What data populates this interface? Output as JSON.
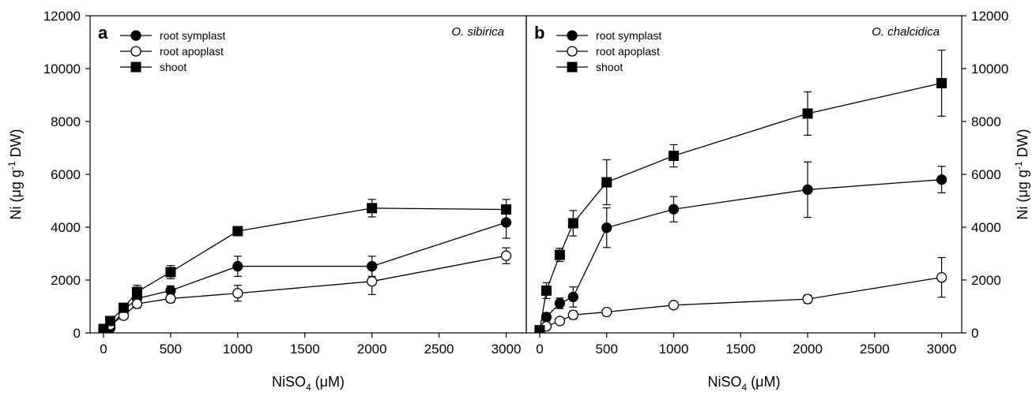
{
  "chart_data": [
    {
      "type": "line",
      "panel_label": "a",
      "species": "O. sibirica",
      "xlabel": "NiSO",
      "xlabel_sub": "4",
      "xlabel_unit": " (μM)",
      "ylabel_pre": "Ni (μg g",
      "ylabel_sup": "-1",
      "ylabel_post": " DW)",
      "xlim": [
        -100,
        3150
      ],
      "ylim": [
        0,
        12000
      ],
      "x_ticks": [
        0,
        500,
        1000,
        1500,
        2000,
        2500,
        3000
      ],
      "y_ticks": [
        0,
        2000,
        4000,
        6000,
        8000,
        10000,
        12000
      ],
      "y_axis_side": "left",
      "legend_position": "top-left",
      "series": [
        {
          "name": "root symplast",
          "marker": "filled-circle",
          "x": [
            0,
            50,
            150,
            250,
            500,
            1000,
            2000,
            3000
          ],
          "y": [
            120,
            180,
            850,
            1300,
            1600,
            2520,
            2520,
            4180
          ],
          "err": [
            40,
            60,
            120,
            180,
            180,
            380,
            380,
            600
          ]
        },
        {
          "name": "root apoplast",
          "marker": "open-circle",
          "x": [
            0,
            50,
            150,
            250,
            500,
            1000,
            2000,
            3000
          ],
          "y": [
            20,
            300,
            650,
            1100,
            1300,
            1500,
            1950,
            2920
          ],
          "err": [
            20,
            60,
            100,
            150,
            150,
            300,
            500,
            300
          ]
        },
        {
          "name": "shoot",
          "marker": "filled-square",
          "x": [
            0,
            50,
            150,
            250,
            500,
            1000,
            2000,
            3000
          ],
          "y": [
            150,
            450,
            950,
            1550,
            2300,
            3850,
            4720,
            4670
          ],
          "err": [
            40,
            80,
            120,
            250,
            250,
            100,
            330,
            380
          ]
        }
      ]
    },
    {
      "type": "line",
      "panel_label": "b",
      "species": "O. chalcidica",
      "xlabel": "NiSO",
      "xlabel_sub": "4",
      "xlabel_unit": " (μM)",
      "ylabel_pre": "Ni (μg g",
      "ylabel_sup": "-1",
      "ylabel_post": " DW)",
      "xlim": [
        -100,
        3150
      ],
      "ylim": [
        0,
        12000
      ],
      "x_ticks": [
        0,
        500,
        1000,
        1500,
        2000,
        2500,
        3000
      ],
      "y_ticks": [
        0,
        2000,
        4000,
        6000,
        8000,
        10000,
        12000
      ],
      "y_axis_side": "right",
      "legend_position": "top-left",
      "series": [
        {
          "name": "root symplast",
          "marker": "filled-circle",
          "x": [
            0,
            50,
            150,
            250,
            500,
            1000,
            2000,
            3000
          ],
          "y": [
            80,
            600,
            1120,
            1360,
            3980,
            4680,
            5420,
            5800
          ],
          "err": [
            30,
            150,
            200,
            380,
            750,
            480,
            1050,
            500
          ]
        },
        {
          "name": "root apoplast",
          "marker": "open-circle",
          "x": [
            0,
            50,
            150,
            250,
            500,
            1000,
            2000,
            3000
          ],
          "y": [
            20,
            250,
            450,
            680,
            790,
            1050,
            1280,
            2100
          ],
          "err": [
            20,
            60,
            100,
            150,
            80,
            60,
            150,
            750
          ]
        },
        {
          "name": "shoot",
          "marker": "filled-square",
          "x": [
            0,
            50,
            150,
            250,
            500,
            1000,
            2000,
            3000
          ],
          "y": [
            100,
            1600,
            2950,
            4150,
            5700,
            6700,
            8300,
            9450
          ],
          "err": [
            40,
            300,
            250,
            480,
            850,
            420,
            820,
            1250
          ]
        }
      ]
    }
  ]
}
